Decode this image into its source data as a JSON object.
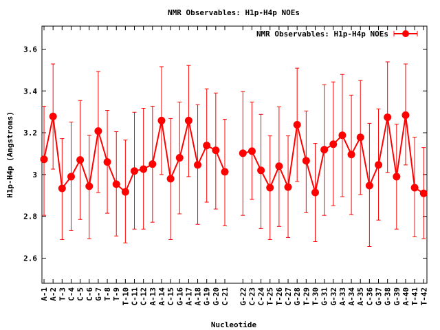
{
  "chart_data": {
    "type": "line",
    "title": "NMR Observables: H1p-H4p NOEs",
    "xlabel": "Nucleotide",
    "ylabel": "H1p-H4p (Angstroms)",
    "ylim": [
      2.48,
      3.71
    ],
    "xlim": [
      0.77,
      43.36
    ],
    "grid": false,
    "legend_placement": "top-right",
    "yticks": [
      2.6,
      2.8,
      3.0,
      3.2,
      3.4,
      3.6
    ],
    "ytick_labels": [
      "2.6",
      "2.8",
      "3",
      "3.2",
      "3.4",
      "3.6"
    ],
    "series_color": "#ff0000",
    "series": [
      {
        "name": "NMR Observables: H1p-H4p NOEs",
        "points": [
          {
            "label": "A-1",
            "x": 1,
            "y": 3.073,
            "ylow": 2.805,
            "yhigh": 3.327
          },
          {
            "label": "A-2",
            "x": 2,
            "y": 3.278,
            "ylow": 3.026,
            "yhigh": 3.529
          },
          {
            "label": "T-3",
            "x": 3,
            "y": 2.934,
            "ylow": 2.689,
            "yhigh": 3.172
          },
          {
            "label": "C-4",
            "x": 4,
            "y": 2.99,
            "ylow": 2.732,
            "yhigh": 3.251
          },
          {
            "label": "C-5",
            "x": 5,
            "y": 3.07,
            "ylow": 2.785,
            "yhigh": 3.354
          },
          {
            "label": "C-6",
            "x": 6,
            "y": 2.944,
            "ylow": 2.693,
            "yhigh": 3.188
          },
          {
            "label": "G-7",
            "x": 7,
            "y": 3.208,
            "ylow": 2.914,
            "yhigh": 3.493
          },
          {
            "label": "T-8",
            "x": 8,
            "y": 3.06,
            "ylow": 2.815,
            "yhigh": 3.307
          },
          {
            "label": "T-9",
            "x": 9,
            "y": 2.954,
            "ylow": 2.706,
            "yhigh": 3.205
          },
          {
            "label": "T-10",
            "x": 10,
            "y": 2.917,
            "ylow": 2.673,
            "yhigh": 3.165
          },
          {
            "label": "C-11",
            "x": 11,
            "y": 3.017,
            "ylow": 2.739,
            "yhigh": 3.298
          },
          {
            "label": "C-12",
            "x": 12,
            "y": 3.026,
            "ylow": 2.739,
            "yhigh": 3.317
          },
          {
            "label": "A-13",
            "x": 13,
            "y": 3.05,
            "ylow": 2.772,
            "yhigh": 3.327
          },
          {
            "label": "A-14",
            "x": 14,
            "y": 3.258,
            "ylow": 3.0,
            "yhigh": 3.516
          },
          {
            "label": "C-15",
            "x": 15,
            "y": 2.98,
            "ylow": 2.689,
            "yhigh": 3.268
          },
          {
            "label": "G-16",
            "x": 16,
            "y": 3.08,
            "ylow": 2.812,
            "yhigh": 3.347
          },
          {
            "label": "A-17",
            "x": 17,
            "y": 3.258,
            "ylow": 2.99,
            "yhigh": 3.522
          },
          {
            "label": "A-18",
            "x": 18,
            "y": 3.046,
            "ylow": 2.762,
            "yhigh": 3.334
          },
          {
            "label": "G-19",
            "x": 19,
            "y": 3.139,
            "ylow": 2.868,
            "yhigh": 3.41
          },
          {
            "label": "G-20",
            "x": 20,
            "y": 3.116,
            "ylow": 2.835,
            "yhigh": 3.39
          },
          {
            "label": "C-21",
            "x": 21,
            "y": 3.013,
            "ylow": 2.755,
            "yhigh": 3.264
          },
          {
            "label": "G-22",
            "x": 23,
            "y": 3.102,
            "ylow": 2.805,
            "yhigh": 3.397
          },
          {
            "label": "C-23",
            "x": 24,
            "y": 3.112,
            "ylow": 2.881,
            "yhigh": 3.347
          },
          {
            "label": "C-24",
            "x": 25,
            "y": 3.02,
            "ylow": 2.742,
            "yhigh": 3.288
          },
          {
            "label": "T-25",
            "x": 26,
            "y": 2.937,
            "ylow": 2.689,
            "yhigh": 3.185
          },
          {
            "label": "T-26",
            "x": 27,
            "y": 3.04,
            "ylow": 2.752,
            "yhigh": 3.324
          },
          {
            "label": "C-27",
            "x": 28,
            "y": 2.94,
            "ylow": 2.699,
            "yhigh": 3.185
          },
          {
            "label": "G-28",
            "x": 29,
            "y": 3.238,
            "ylow": 2.967,
            "yhigh": 3.509
          },
          {
            "label": "T-29",
            "x": 30,
            "y": 3.066,
            "ylow": 2.818,
            "yhigh": 3.304
          },
          {
            "label": "T-30",
            "x": 31,
            "y": 2.914,
            "ylow": 2.679,
            "yhigh": 3.149
          },
          {
            "label": "G-31",
            "x": 32,
            "y": 3.119,
            "ylow": 2.805,
            "yhigh": 3.43
          },
          {
            "label": "G-32",
            "x": 33,
            "y": 3.145,
            "ylow": 2.851,
            "yhigh": 3.443
          },
          {
            "label": "A-33",
            "x": 34,
            "y": 3.188,
            "ylow": 2.894,
            "yhigh": 3.479
          },
          {
            "label": "A-34",
            "x": 35,
            "y": 3.096,
            "ylow": 2.808,
            "yhigh": 3.38
          },
          {
            "label": "A-35",
            "x": 36,
            "y": 3.178,
            "ylow": 2.904,
            "yhigh": 3.45
          },
          {
            "label": "C-36",
            "x": 37,
            "y": 2.947,
            "ylow": 2.656,
            "yhigh": 3.245
          },
          {
            "label": "G-37",
            "x": 38,
            "y": 3.046,
            "ylow": 2.782,
            "yhigh": 3.314
          },
          {
            "label": "G-38",
            "x": 39,
            "y": 3.274,
            "ylow": 3.01,
            "yhigh": 3.539
          },
          {
            "label": "G-39",
            "x": 40,
            "y": 2.99,
            "ylow": 2.739,
            "yhigh": 3.241
          },
          {
            "label": "A-40",
            "x": 41,
            "y": 3.284,
            "ylow": 3.046,
            "yhigh": 3.529
          },
          {
            "label": "T-41",
            "x": 42,
            "y": 2.937,
            "ylow": 2.702,
            "yhigh": 3.179
          },
          {
            "label": "T-42",
            "x": 43,
            "y": 2.91,
            "ylow": 2.693,
            "yhigh": 3.129
          }
        ]
      }
    ]
  }
}
